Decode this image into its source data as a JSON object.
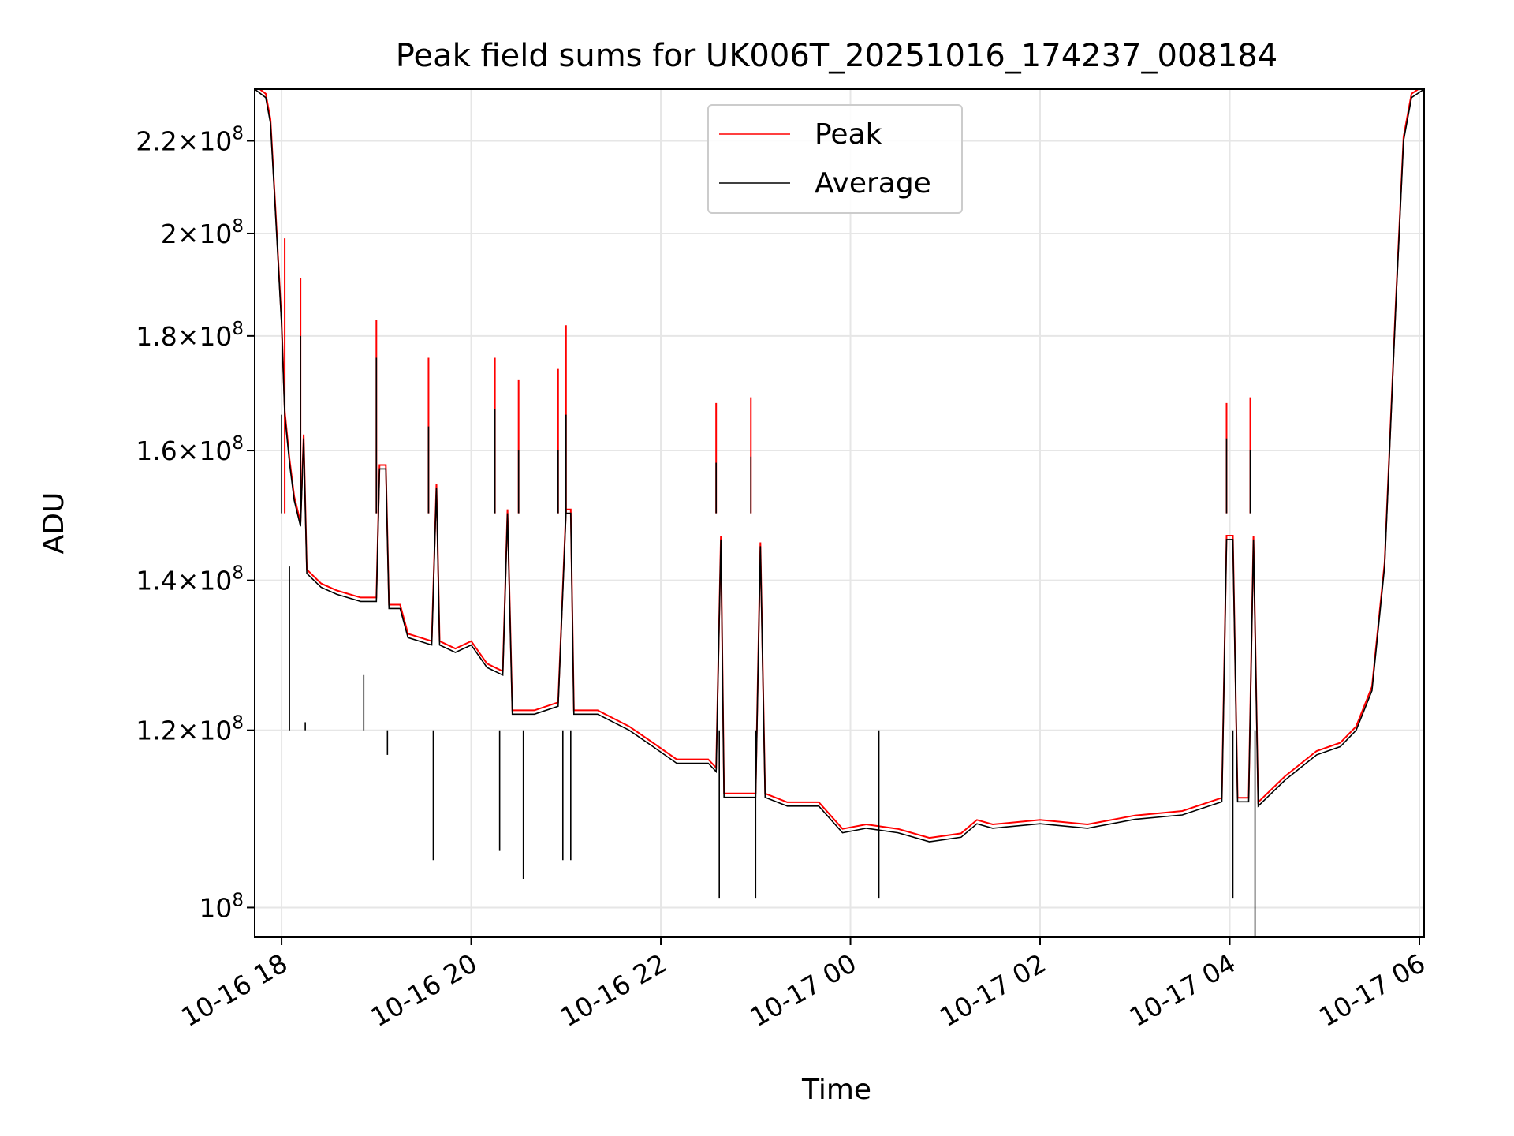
{
  "chart_data": {
    "type": "line",
    "title": "Peak field sums for UK006T_20251016_174237_008184",
    "xlabel": "Time",
    "ylabel": "ADU",
    "yscale": "log",
    "xlim": [
      "2025-10-16 17:43",
      "2025-10-17 06:03"
    ],
    "ylim": [
      97000000,
      232000000
    ],
    "grid": true,
    "legend_position": "top-center",
    "x_ticks": [
      {
        "time": "2025-10-16 18:00",
        "label": "10-16 18"
      },
      {
        "time": "2025-10-16 20:00",
        "label": "10-16 20"
      },
      {
        "time": "2025-10-16 22:00",
        "label": "10-16 22"
      },
      {
        "time": "2025-10-17 00:00",
        "label": "10-17 00"
      },
      {
        "time": "2025-10-17 02:00",
        "label": "10-17 02"
      },
      {
        "time": "2025-10-17 04:00",
        "label": "10-17 04"
      },
      {
        "time": "2025-10-17 06:00",
        "label": "10-17 06"
      }
    ],
    "y_ticks": [
      {
        "value": 100000000,
        "mant": "",
        "exp": "8"
      },
      {
        "value": 120000000,
        "mant": "1.2",
        "exp": "8"
      },
      {
        "value": 140000000,
        "mant": "1.4",
        "exp": "8"
      },
      {
        "value": 160000000,
        "mant": "1.6",
        "exp": "8"
      },
      {
        "value": 180000000,
        "mant": "1.8",
        "exp": "8"
      },
      {
        "value": 200000000,
        "mant": "2",
        "exp": "8"
      },
      {
        "value": 220000000,
        "mant": "2.2",
        "exp": "8"
      }
    ],
    "series": [
      {
        "name": "Peak",
        "color": "#ff0000"
      },
      {
        "name": "Average",
        "color": "#000000"
      }
    ],
    "baseline": [
      [
        "2025-10-16 17:43",
        232000000.0
      ],
      [
        "2025-10-16 17:50",
        230000000.0
      ],
      [
        "2025-10-16 17:53",
        224000000.0
      ],
      [
        "2025-10-16 17:56",
        205000000.0
      ],
      [
        "2025-10-16 18:00",
        182000000.0
      ],
      [
        "2025-10-16 18:02",
        166000000.0
      ],
      [
        "2025-10-16 18:05",
        158000000.0
      ],
      [
        "2025-10-16 18:08",
        152000000.0
      ],
      [
        "2025-10-16 18:12",
        148000000.0
      ],
      [
        "2025-10-16 18:14",
        162000000.0
      ],
      [
        "2025-10-16 18:16",
        141000000.0
      ],
      [
        "2025-10-16 18:25",
        139000000.0
      ],
      [
        "2025-10-16 18:35",
        138000000.0
      ],
      [
        "2025-10-16 18:50",
        137000000.0
      ],
      [
        "2025-10-16 19:00",
        137000000.0
      ],
      [
        "2025-10-16 19:02",
        157000000.0
      ],
      [
        "2025-10-16 19:06",
        157000000.0
      ],
      [
        "2025-10-16 19:08",
        136000000.0
      ],
      [
        "2025-10-16 19:15",
        136000000.0
      ],
      [
        "2025-10-16 19:20",
        132000000.0
      ],
      [
        "2025-10-16 19:35",
        131000000.0
      ],
      [
        "2025-10-16 19:38",
        154000000.0
      ],
      [
        "2025-10-16 19:40",
        131000000.0
      ],
      [
        "2025-10-16 19:50",
        130000000.0
      ],
      [
        "2025-10-16 20:00",
        131000000.0
      ],
      [
        "2025-10-16 20:10",
        128000000.0
      ],
      [
        "2025-10-16 20:20",
        127000000.0
      ],
      [
        "2025-10-16 20:23",
        150000000.0
      ],
      [
        "2025-10-16 20:26",
        122000000.0
      ],
      [
        "2025-10-16 20:40",
        122000000.0
      ],
      [
        "2025-10-16 20:55",
        123000000.0
      ],
      [
        "2025-10-16 21:00",
        150000000.0
      ],
      [
        "2025-10-16 21:03",
        150000000.0
      ],
      [
        "2025-10-16 21:05",
        122000000.0
      ],
      [
        "2025-10-16 21:20",
        122000000.0
      ],
      [
        "2025-10-16 21:40",
        120000000.0
      ],
      [
        "2025-10-16 21:55",
        118000000.0
      ],
      [
        "2025-10-16 22:10",
        116000000.0
      ],
      [
        "2025-10-16 22:30",
        116000000.0
      ],
      [
        "2025-10-16 22:35",
        115000000.0
      ],
      [
        "2025-10-16 22:38",
        146000000.0
      ],
      [
        "2025-10-16 22:40",
        112000000.0
      ],
      [
        "2025-10-16 23:00",
        112000000.0
      ],
      [
        "2025-10-16 23:03",
        145000000.0
      ],
      [
        "2025-10-16 23:06",
        112000000.0
      ],
      [
        "2025-10-16 23:20",
        111000000.0
      ],
      [
        "2025-10-16 23:40",
        111000000.0
      ],
      [
        "2025-10-16 23:55",
        108000000.0
      ],
      [
        "2025-10-17 00:10",
        108500000.0
      ],
      [
        "2025-10-17 00:30",
        108000000.0
      ],
      [
        "2025-10-17 00:50",
        107000000.0
      ],
      [
        "2025-10-17 01:10",
        107500000.0
      ],
      [
        "2025-10-17 01:20",
        109000000.0
      ],
      [
        "2025-10-17 01:30",
        108500000.0
      ],
      [
        "2025-10-17 02:00",
        109000000.0
      ],
      [
        "2025-10-17 02:30",
        108500000.0
      ],
      [
        "2025-10-17 03:00",
        109500000.0
      ],
      [
        "2025-10-17 03:30",
        110000000.0
      ],
      [
        "2025-10-17 03:55",
        111500000.0
      ],
      [
        "2025-10-17 03:58",
        146000000.0
      ],
      [
        "2025-10-17 04:02",
        146000000.0
      ],
      [
        "2025-10-17 04:05",
        111500000.0
      ],
      [
        "2025-10-17 04:12",
        111500000.0
      ],
      [
        "2025-10-17 04:15",
        146000000.0
      ],
      [
        "2025-10-17 04:18",
        111000000.0
      ],
      [
        "2025-10-17 04:35",
        114000000.0
      ],
      [
        "2025-10-17 04:55",
        117000000.0
      ],
      [
        "2025-10-17 05:10",
        118000000.0
      ],
      [
        "2025-10-17 05:20",
        120000000.0
      ],
      [
        "2025-10-17 05:30",
        125000000.0
      ],
      [
        "2025-10-17 05:38",
        142000000.0
      ],
      [
        "2025-10-17 05:45",
        185000000.0
      ],
      [
        "2025-10-17 05:50",
        220000000.0
      ],
      [
        "2025-10-17 05:55",
        230000000.0
      ],
      [
        "2025-10-17 06:03",
        232000000.0
      ]
    ],
    "peak_spikes": [
      [
        "2025-10-16 18:02",
        199000000.0
      ],
      [
        "2025-10-16 18:12",
        191000000.0
      ],
      [
        "2025-10-16 19:00",
        183000000.0
      ],
      [
        "2025-10-16 19:33",
        176000000.0
      ],
      [
        "2025-10-16 20:15",
        176000000.0
      ],
      [
        "2025-10-16 20:30",
        172000000.0
      ],
      [
        "2025-10-16 20:55",
        174000000.0
      ],
      [
        "2025-10-16 21:00",
        182000000.0
      ],
      [
        "2025-10-16 22:35",
        168000000.0
      ],
      [
        "2025-10-16 22:57",
        169000000.0
      ],
      [
        "2025-10-17 03:58",
        168000000.0
      ],
      [
        "2025-10-17 04:13",
        169000000.0
      ]
    ],
    "average_spikes": [
      [
        "2025-10-16 18:00",
        166000000.0
      ],
      [
        "2025-10-16 18:12",
        180000000.0
      ],
      [
        "2025-10-16 19:00",
        176000000.0
      ],
      [
        "2025-10-16 19:33",
        164000000.0
      ],
      [
        "2025-10-16 20:15",
        167000000.0
      ],
      [
        "2025-10-16 20:30",
        160000000.0
      ],
      [
        "2025-10-16 20:55",
        160000000.0
      ],
      [
        "2025-10-16 21:00",
        166000000.0
      ],
      [
        "2025-10-16 22:35",
        158000000.0
      ],
      [
        "2025-10-16 22:57",
        159000000.0
      ],
      [
        "2025-10-17 03:58",
        162000000.0
      ],
      [
        "2025-10-17 04:13",
        160000000.0
      ]
    ],
    "dips": [
      [
        "2025-10-16 18:05",
        142000000.0
      ],
      [
        "2025-10-16 18:15",
        121000000.0
      ],
      [
        "2025-10-16 18:52",
        127000000.0
      ],
      [
        "2025-10-16 19:07",
        117000000.0
      ],
      [
        "2025-10-16 19:36",
        105000000.0
      ],
      [
        "2025-10-16 20:18",
        106000000.0
      ],
      [
        "2025-10-16 20:33",
        103000000.0
      ],
      [
        "2025-10-16 20:58",
        105000000.0
      ],
      [
        "2025-10-16 21:03",
        105000000.0
      ],
      [
        "2025-10-16 22:37",
        101000000.0
      ],
      [
        "2025-10-16 23:00",
        101000000.0
      ],
      [
        "2025-10-17 00:18",
        101000000.0
      ],
      [
        "2025-10-17 04:02",
        101000000.0
      ],
      [
        "2025-10-17 04:16",
        97000000.0
      ]
    ]
  }
}
